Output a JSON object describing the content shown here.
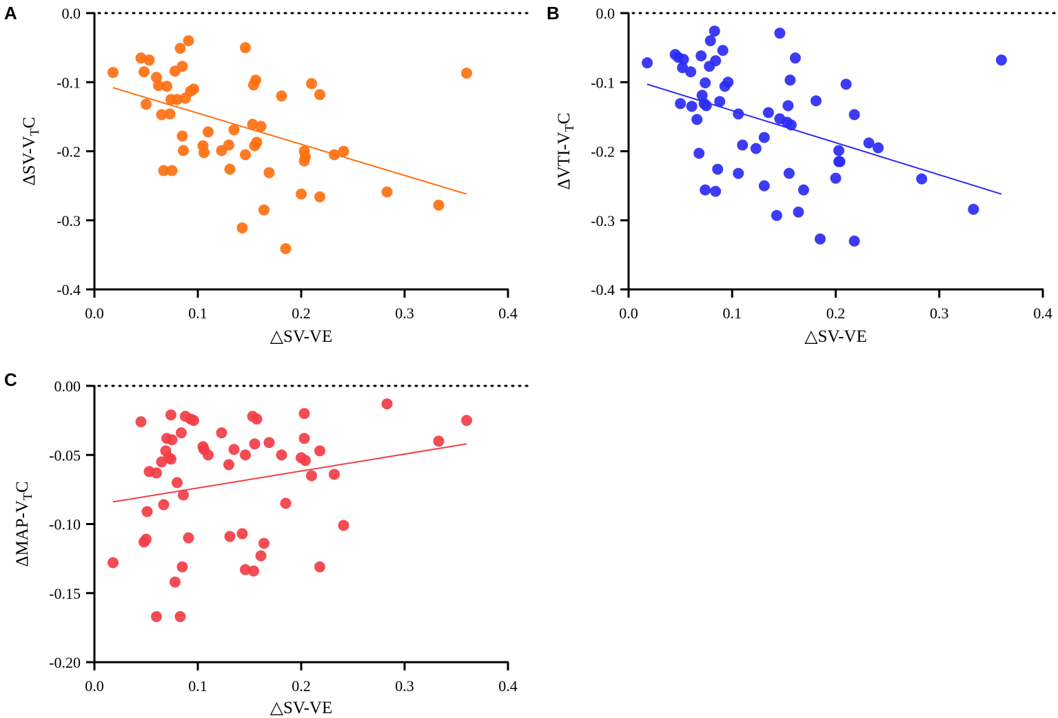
{
  "chart_data": [
    {
      "panel": "A",
      "type": "scatter",
      "title": "",
      "xlabel": "△SV-VE",
      "ylabel": {
        "prefix": "ΔSV-V",
        "sub": "T",
        "suffix": "C"
      },
      "xlim": [
        0,
        0.4
      ],
      "ylim": [
        -0.4,
        0
      ],
      "xticks": [
        "0.0",
        "0.1",
        "0.2",
        "0.3",
        "0.4"
      ],
      "yticks": [
        "0.0",
        "-0.1",
        "-0.2",
        "-0.3",
        "-0.4"
      ],
      "reference_line_y": 0,
      "color": "#FF6F0F",
      "fit_line": {
        "x": [
          0.018,
          0.36
        ],
        "y": [
          -0.108,
          -0.262
        ]
      },
      "series": [
        {
          "name": "points",
          "points": [
            [
              0.018,
              -0.086
            ],
            [
              0.045,
              -0.065
            ],
            [
              0.048,
              -0.085
            ],
            [
              0.05,
              -0.132
            ],
            [
              0.053,
              -0.068
            ],
            [
              0.06,
              -0.093
            ],
            [
              0.062,
              -0.105
            ],
            [
              0.065,
              -0.147
            ],
            [
              0.067,
              -0.228
            ],
            [
              0.07,
              -0.106
            ],
            [
              0.073,
              -0.146
            ],
            [
              0.074,
              -0.125
            ],
            [
              0.075,
              -0.228
            ],
            [
              0.078,
              -0.084
            ],
            [
              0.08,
              -0.125
            ],
            [
              0.083,
              -0.051
            ],
            [
              0.085,
              -0.077
            ],
            [
              0.085,
              -0.178
            ],
            [
              0.086,
              -0.199
            ],
            [
              0.088,
              -0.123
            ],
            [
              0.091,
              -0.04
            ],
            [
              0.093,
              -0.113
            ],
            [
              0.096,
              -0.11
            ],
            [
              0.105,
              -0.192
            ],
            [
              0.106,
              -0.202
            ],
            [
              0.11,
              -0.172
            ],
            [
              0.123,
              -0.199
            ],
            [
              0.13,
              -0.191
            ],
            [
              0.131,
              -0.226
            ],
            [
              0.135,
              -0.169
            ],
            [
              0.143,
              -0.311
            ],
            [
              0.146,
              -0.05
            ],
            [
              0.146,
              -0.205
            ],
            [
              0.153,
              -0.161
            ],
            [
              0.154,
              -0.104
            ],
            [
              0.155,
              -0.192
            ],
            [
              0.156,
              -0.097
            ],
            [
              0.157,
              -0.187
            ],
            [
              0.161,
              -0.164
            ],
            [
              0.164,
              -0.285
            ],
            [
              0.169,
              -0.231
            ],
            [
              0.181,
              -0.12
            ],
            [
              0.185,
              -0.341
            ],
            [
              0.2,
              -0.262
            ],
            [
              0.203,
              -0.2
            ],
            [
              0.203,
              -0.214
            ],
            [
              0.204,
              -0.208
            ],
            [
              0.21,
              -0.102
            ],
            [
              0.218,
              -0.118
            ],
            [
              0.218,
              -0.266
            ],
            [
              0.232,
              -0.205
            ],
            [
              0.241,
              -0.2
            ],
            [
              0.283,
              -0.259
            ],
            [
              0.333,
              -0.278
            ],
            [
              0.36,
              -0.087
            ]
          ]
        }
      ]
    },
    {
      "panel": "B",
      "type": "scatter",
      "title": "",
      "xlabel": "△SV-VE",
      "ylabel": {
        "prefix": "ΔVTI-V",
        "sub": "T",
        "suffix": "C"
      },
      "xlim": [
        0,
        0.4
      ],
      "ylim": [
        -0.4,
        0
      ],
      "xticks": [
        "0.0",
        "0.1",
        "0.2",
        "0.3",
        "0.4"
      ],
      "yticks": [
        "0.0",
        "-0.1",
        "-0.2",
        "-0.3",
        "-0.4"
      ],
      "reference_line_y": 0,
      "color": "#2B2BF5",
      "fit_line": {
        "x": [
          0.018,
          0.36
        ],
        "y": [
          -0.103,
          -0.262
        ]
      },
      "series": [
        {
          "name": "points",
          "points": [
            [
              0.018,
              -0.072
            ],
            [
              0.045,
              -0.06
            ],
            [
              0.048,
              -0.064
            ],
            [
              0.05,
              -0.131
            ],
            [
              0.052,
              -0.079
            ],
            [
              0.053,
              -0.067
            ],
            [
              0.06,
              -0.085
            ],
            [
              0.061,
              -0.135
            ],
            [
              0.066,
              -0.154
            ],
            [
              0.068,
              -0.203
            ],
            [
              0.07,
              -0.062
            ],
            [
              0.071,
              -0.119
            ],
            [
              0.073,
              -0.131
            ],
            [
              0.074,
              -0.101
            ],
            [
              0.074,
              -0.256
            ],
            [
              0.075,
              -0.134
            ],
            [
              0.078,
              -0.077
            ],
            [
              0.079,
              -0.04
            ],
            [
              0.083,
              -0.026
            ],
            [
              0.084,
              -0.069
            ],
            [
              0.084,
              -0.258
            ],
            [
              0.086,
              -0.226
            ],
            [
              0.088,
              -0.128
            ],
            [
              0.091,
              -0.054
            ],
            [
              0.093,
              -0.106
            ],
            [
              0.096,
              -0.1
            ],
            [
              0.106,
              -0.146
            ],
            [
              0.106,
              -0.232
            ],
            [
              0.11,
              -0.191
            ],
            [
              0.123,
              -0.196
            ],
            [
              0.131,
              -0.18
            ],
            [
              0.131,
              -0.25
            ],
            [
              0.135,
              -0.144
            ],
            [
              0.143,
              -0.293
            ],
            [
              0.146,
              -0.153
            ],
            [
              0.146,
              -0.029
            ],
            [
              0.153,
              -0.158
            ],
            [
              0.154,
              -0.134
            ],
            [
              0.155,
              -0.232
            ],
            [
              0.156,
              -0.097
            ],
            [
              0.157,
              -0.162
            ],
            [
              0.161,
              -0.065
            ],
            [
              0.164,
              -0.288
            ],
            [
              0.169,
              -0.256
            ],
            [
              0.181,
              -0.127
            ],
            [
              0.185,
              -0.327
            ],
            [
              0.2,
              -0.239
            ],
            [
              0.203,
              -0.199
            ],
            [
              0.203,
              -0.215
            ],
            [
              0.204,
              -0.215
            ],
            [
              0.21,
              -0.103
            ],
            [
              0.218,
              -0.33
            ],
            [
              0.218,
              -0.147
            ],
            [
              0.232,
              -0.188
            ],
            [
              0.241,
              -0.195
            ],
            [
              0.283,
              -0.24
            ],
            [
              0.333,
              -0.284
            ],
            [
              0.36,
              -0.068
            ]
          ]
        }
      ]
    },
    {
      "panel": "C",
      "type": "scatter",
      "title": "",
      "xlabel": "△SV-VE",
      "ylabel": {
        "prefix": "ΔMAP-V",
        "sub": "T",
        "suffix": "C"
      },
      "xlim": [
        0,
        0.4
      ],
      "ylim": [
        -0.2,
        0
      ],
      "xticks": [
        "0.0",
        "0.1",
        "0.2",
        "0.3",
        "0.4"
      ],
      "yticks": [
        "0.00",
        "-0.05",
        "-0.10",
        "-0.15",
        "-0.20"
      ],
      "reference_line_y": 0,
      "color": "#F23D45",
      "fit_line": {
        "x": [
          0.018,
          0.36
        ],
        "y": [
          -0.084,
          -0.042
        ]
      },
      "series": [
        {
          "name": "points",
          "points": [
            [
              0.018,
              -0.128
            ],
            [
              0.045,
              -0.026
            ],
            [
              0.048,
              -0.113
            ],
            [
              0.05,
              -0.111
            ],
            [
              0.051,
              -0.091
            ],
            [
              0.053,
              -0.062
            ],
            [
              0.06,
              -0.063
            ],
            [
              0.06,
              -0.167
            ],
            [
              0.065,
              -0.055
            ],
            [
              0.067,
              -0.086
            ],
            [
              0.069,
              -0.047
            ],
            [
              0.07,
              -0.038
            ],
            [
              0.072,
              -0.052
            ],
            [
              0.074,
              -0.053
            ],
            [
              0.075,
              -0.039
            ],
            [
              0.074,
              -0.021
            ],
            [
              0.078,
              -0.142
            ],
            [
              0.08,
              -0.07
            ],
            [
              0.083,
              -0.167
            ],
            [
              0.084,
              -0.034
            ],
            [
              0.085,
              -0.131
            ],
            [
              0.086,
              -0.079
            ],
            [
              0.088,
              -0.022
            ],
            [
              0.091,
              -0.11
            ],
            [
              0.093,
              -0.024
            ],
            [
              0.096,
              -0.025
            ],
            [
              0.105,
              -0.044
            ],
            [
              0.106,
              -0.046
            ],
            [
              0.11,
              -0.05
            ],
            [
              0.123,
              -0.034
            ],
            [
              0.13,
              -0.057
            ],
            [
              0.131,
              -0.109
            ],
            [
              0.135,
              -0.046
            ],
            [
              0.143,
              -0.107
            ],
            [
              0.146,
              -0.133
            ],
            [
              0.146,
              -0.05
            ],
            [
              0.153,
              -0.022
            ],
            [
              0.154,
              -0.134
            ],
            [
              0.155,
              -0.042
            ],
            [
              0.157,
              -0.024
            ],
            [
              0.161,
              -0.123
            ],
            [
              0.164,
              -0.114
            ],
            [
              0.169,
              -0.041
            ],
            [
              0.181,
              -0.05
            ],
            [
              0.185,
              -0.085
            ],
            [
              0.2,
              -0.052
            ],
            [
              0.203,
              -0.02
            ],
            [
              0.203,
              -0.038
            ],
            [
              0.204,
              -0.054
            ],
            [
              0.21,
              -0.065
            ],
            [
              0.218,
              -0.047
            ],
            [
              0.218,
              -0.131
            ],
            [
              0.232,
              -0.064
            ],
            [
              0.241,
              -0.101
            ],
            [
              0.283,
              -0.013
            ],
            [
              0.333,
              -0.04
            ],
            [
              0.36,
              -0.025
            ]
          ]
        }
      ]
    }
  ]
}
